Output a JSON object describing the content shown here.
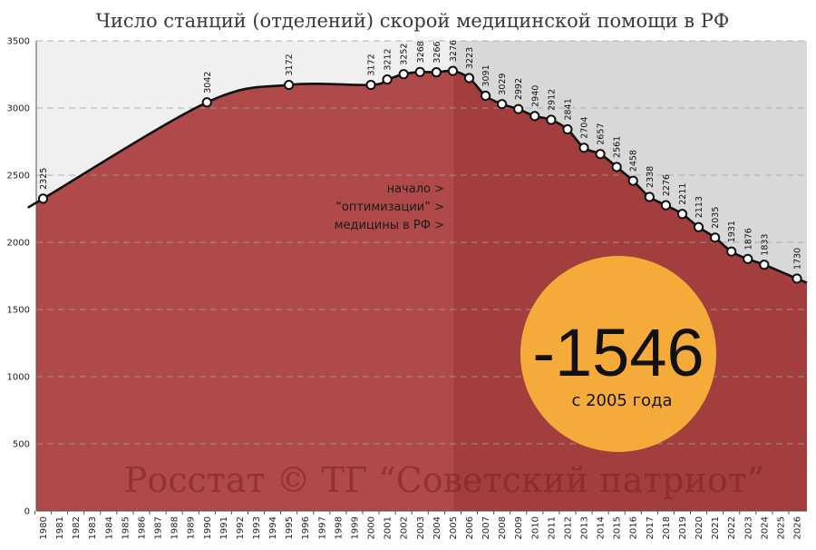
{
  "chart_data": {
    "type": "area",
    "title": "Число станций (отделений) скорой медицинской помощи в РФ",
    "x_ticks": [
      "1980",
      "1981",
      "1982",
      "1983",
      "1984",
      "1985",
      "1986",
      "1987",
      "1988",
      "1989",
      "1990",
      "1991",
      "1992",
      "1993",
      "1994",
      "1995",
      "1996",
      "1997",
      "1998",
      "1999",
      "2000",
      "2001",
      "2002",
      "2003",
      "2004",
      "2005",
      "2006",
      "2007",
      "2008",
      "2009",
      "2010",
      "2011",
      "2012",
      "2013",
      "2014",
      "2015",
      "2016",
      "2017",
      "2018",
      "2019",
      "2020",
      "2021",
      "2022",
      "2023",
      "2024",
      "2025",
      "2026"
    ],
    "y_ticks": [
      0,
      500,
      1000,
      1500,
      2000,
      2500,
      3000,
      3500
    ],
    "ylim": [
      0,
      3500
    ],
    "xlim": [
      1980,
      2026
    ],
    "grid": true,
    "series": [
      {
        "x": [
          1980,
          1990,
          1995,
          2000,
          2001,
          2002,
          2003,
          2004,
          2005,
          2006,
          2007,
          2008,
          2009,
          2010,
          2011,
          2012,
          2013,
          2014,
          2015,
          2016,
          2017,
          2018,
          2019,
          2020,
          2021,
          2022,
          2023,
          2024,
          2026
        ],
        "y": [
          2325,
          3042,
          3172,
          3172,
          3212,
          3252,
          3268,
          3266,
          3276,
          3223,
          3091,
          3029,
          2992,
          2940,
          2912,
          2841,
          2704,
          2657,
          2561,
          2458,
          2338,
          2276,
          2211,
          2113,
          2035,
          1931,
          1876,
          1833,
          1730
        ]
      }
    ],
    "highlight_from": 2005,
    "annotation_lines": [
      "начало >",
      "“оптимизации” >",
      "медицины в РФ >"
    ],
    "badge": {
      "value": "-1546",
      "caption": "с 2005 года"
    },
    "watermark": "Росстат © ТГ “Советский патриот”",
    "colors": {
      "area_left": "#b04a4a",
      "area_right": "#a33e3e",
      "bg_left": "#f0f0f0",
      "bg_right": "#d8d8d8",
      "badge": "#f5ab3a",
      "line": "#111111",
      "grid": "#a0a0a0"
    }
  }
}
